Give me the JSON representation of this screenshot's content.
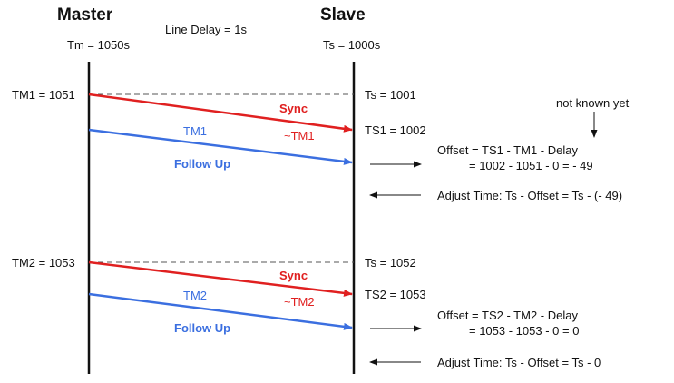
{
  "headers": {
    "master": "Master",
    "slave": "Slave",
    "line_delay": "Line Delay = 1s",
    "tm": "Tm = 1050s",
    "ts": "Ts = 1000s"
  },
  "cycle1": {
    "tm": "TM1 = 1051",
    "ts": "Ts = 1001",
    "sync": "Sync",
    "sync_time": "~TM1",
    "follow_time": "TM1",
    "follow_up": "Follow Up",
    "ts_recv": "TS1 = 1002",
    "note": "not known yet",
    "offset_formula": "Offset = TS1 - TM1 - Delay",
    "offset_calc": "= 1002 - 1051 - 0 = - 49",
    "adjust": "Adjust Time: Ts - Offset = Ts - (- 49)"
  },
  "cycle2": {
    "tm": "TM2 = 1053",
    "ts": "Ts = 1052",
    "sync": "Sync",
    "sync_time": "~TM2",
    "follow_time": "TM2",
    "follow_up": "Follow Up",
    "ts_recv": "TS2 = 1053",
    "offset_formula": "Offset = TS2 - TM2 - Delay",
    "offset_calc": "= 1053 - 1053 - 0 = 0",
    "adjust": "Adjust Time: Ts - Offset  = Ts - 0"
  },
  "colors": {
    "sync": "#e02020",
    "follow_up": "#3b6fe0"
  }
}
